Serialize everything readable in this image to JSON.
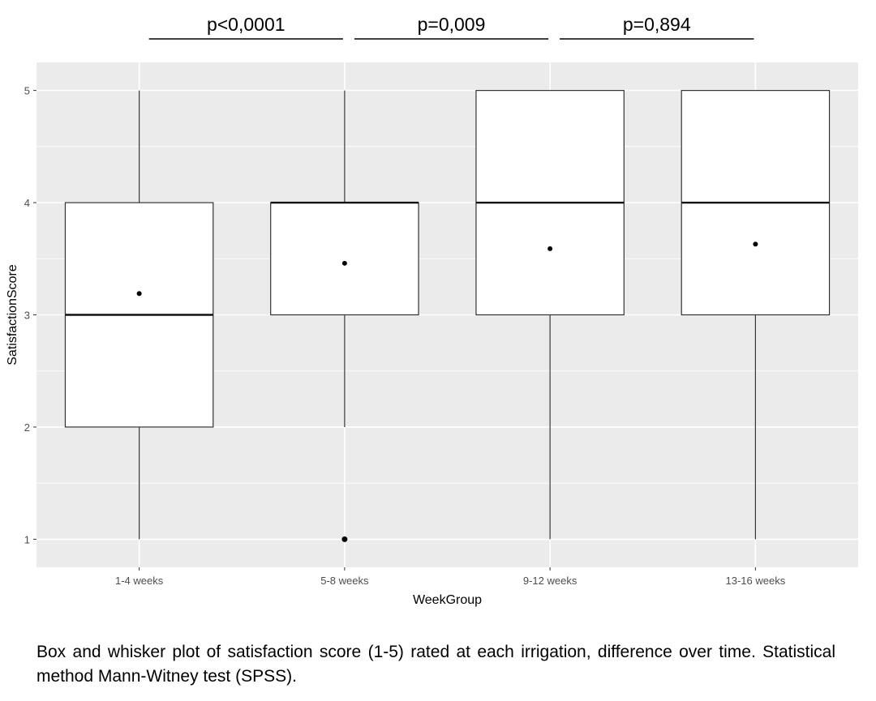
{
  "chart_data": {
    "type": "boxplot",
    "xlabel": "WeekGroup",
    "ylabel": "SatisfactionScore",
    "ylim": [
      0.75,
      5.25
    ],
    "yticks": [
      "1",
      "2",
      "3",
      "4",
      "5"
    ],
    "grid": true,
    "legend": "none",
    "categories": [
      "1-4 weeks",
      "5-8 weeks",
      "9-12 weeks",
      "13-16 weeks"
    ],
    "boxes": [
      {
        "category": "1-4 weeks",
        "whisker_low": 1,
        "q1": 2,
        "median": 3,
        "q3": 4,
        "whisker_high": 5,
        "mean": 3.19,
        "outliers": []
      },
      {
        "category": "5-8 weeks",
        "whisker_low": 2,
        "q1": 3,
        "median": 4,
        "q3": 4,
        "whisker_high": 5,
        "mean": 3.46,
        "outliers": [
          1
        ]
      },
      {
        "category": "9-12 weeks",
        "whisker_low": 1,
        "q1": 3,
        "median": 4,
        "q3": 5,
        "whisker_high": 5,
        "mean": 3.59,
        "outliers": []
      },
      {
        "category": "13-16 weeks",
        "whisker_low": 1,
        "q1": 3,
        "median": 4,
        "q3": 5,
        "whisker_high": 5,
        "mean": 3.63,
        "outliers": []
      }
    ],
    "comparisons": [
      {
        "groups": [
          "1-4 weeks",
          "5-8 weeks"
        ],
        "label": "p<0,0001"
      },
      {
        "groups": [
          "5-8 weeks",
          "9-12 weeks"
        ],
        "label": "p=0,009"
      },
      {
        "groups": [
          "9-12 weeks",
          "13-16 weeks"
        ],
        "label": "p=0,894"
      }
    ],
    "colors": {
      "panel": "#ebebeb",
      "grid": "#ffffff",
      "box_fill": "#ffffff",
      "box_stroke": "#333333"
    }
  },
  "caption": "Box and whisker plot of satisfaction score (1-5) rated at each irrigation, difference over time. Statistical method Mann-Witney test (SPSS)."
}
